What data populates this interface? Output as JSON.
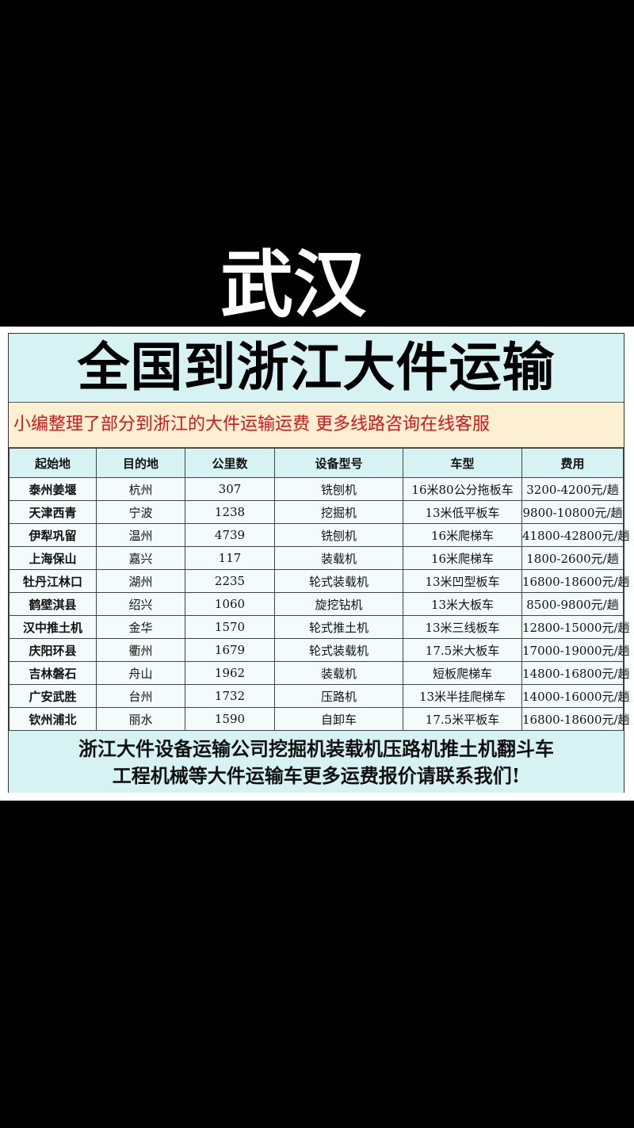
{
  "city": "武汉",
  "title": "全国到浙江大件运输",
  "subtitle": "小编整理了部分到浙江的大件运输运费 更多线路咨询在线客服",
  "table": {
    "headers": [
      "起始地",
      "目的地",
      "公里数",
      "设备型号",
      "车型",
      "费用"
    ],
    "rows": [
      [
        "泰州姜堰",
        "杭州",
        "307",
        "铣刨机",
        "16米80公分拖板车",
        "3200-4200元/趟"
      ],
      [
        "天津西青",
        "宁波",
        "1238",
        "挖掘机",
        "13米低平板车",
        "9800-10800元/趟"
      ],
      [
        "伊犁巩留",
        "温州",
        "4739",
        "铣刨机",
        "16米爬梯车",
        "41800-42800元/趟"
      ],
      [
        "上海保山",
        "嘉兴",
        "117",
        "装载机",
        "16米爬梯车",
        "1800-2600元/趟"
      ],
      [
        "牡丹江林口",
        "湖州",
        "2235",
        "轮式装载机",
        "13米凹型板车",
        "16800-18600元/趟"
      ],
      [
        "鹤壁淇县",
        "绍兴",
        "1060",
        "旋挖钻机",
        "13米大板车",
        "8500-9800元/趟"
      ],
      [
        "汉中推土机",
        "金华",
        "1570",
        "轮式推土机",
        "13米三线板车",
        "12800-15000元/趟"
      ],
      [
        "庆阳环县",
        "衢州",
        "1679",
        "轮式装载机",
        "17.5米大板车",
        "17000-19000元/趟"
      ],
      [
        "吉林磐石",
        "舟山",
        "1962",
        "装载机",
        "短板爬梯车",
        "14800-16800元/趟"
      ],
      [
        "广安武胜",
        "台州",
        "1732",
        "压路机",
        "13米半挂爬梯车",
        "14000-16000元/趟"
      ],
      [
        "钦州浦北",
        "丽水",
        "1590",
        "自卸车",
        "17.5米平板车",
        "16800-18600元/趟"
      ]
    ]
  },
  "footer": {
    "line1": "浙江大件设备运输公司挖掘机装载机压路机推土机翻斗车",
    "line2": "工程机械等大件运输车更多运费报价请联系我们!"
  },
  "colors": {
    "title_bg": "#d6f2f2",
    "subtitle_bg": "#fdf0d2",
    "subtitle_text": "#d8141a"
  }
}
